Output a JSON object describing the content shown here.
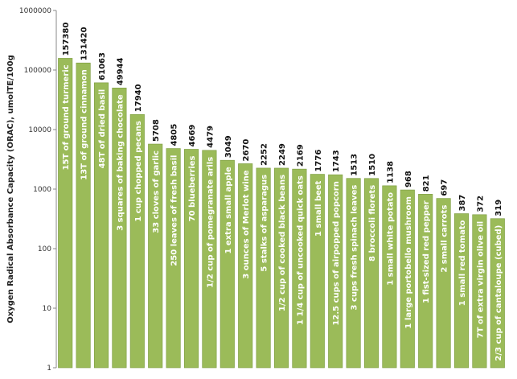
{
  "chart_data": {
    "type": "bar",
    "ylabel": "Oxygen Radical Absorbance Capacity (ORAC), umolTE/100g",
    "yscale": "log",
    "ylim": [
      1,
      1000000
    ],
    "yticks": [
      "1000000",
      "100000",
      "10000",
      "1000",
      "100",
      "10",
      "1"
    ],
    "grid": false,
    "bar_color": "#9bbb59",
    "bar_edge_color": "#7a9a3e",
    "categories": [
      "15T of ground turmeric",
      "13T of ground cinnamon",
      "48T of dried basil",
      "3 squares of baking chocolate",
      "1 cup chopped pecans",
      "33 cloves of garlic",
      "250 leaves of fresh basil",
      "70 blueberries",
      "1/2 cup of pomegranate arils",
      "1 extra small apple",
      "3 ounces of Merlot wine",
      "5 stalks of asparagus",
      "1/2 cup of cooked black beans",
      "1 1/4 cup of uncooked quick oats",
      "1 small beet",
      "12.5 cups of airpopped popcorn",
      "3 cups fresh spinach leaves",
      "8 broccoli florets",
      "1 small white potato",
      "1 large portobello mushroom",
      "1 fist-sized red pepper",
      "2 small carrots",
      "1 small red tomato",
      "7T of extra virgin olive oil",
      "2/3 cup of cantaloupe (cubed)"
    ],
    "values": [
      157380,
      131420,
      61063,
      49944,
      17940,
      5708,
      4805,
      4669,
      4479,
      3049,
      2670,
      2252,
      2249,
      2169,
      1776,
      1743,
      1513,
      1510,
      1138,
      968,
      821,
      697,
      387,
      372,
      319
    ]
  }
}
